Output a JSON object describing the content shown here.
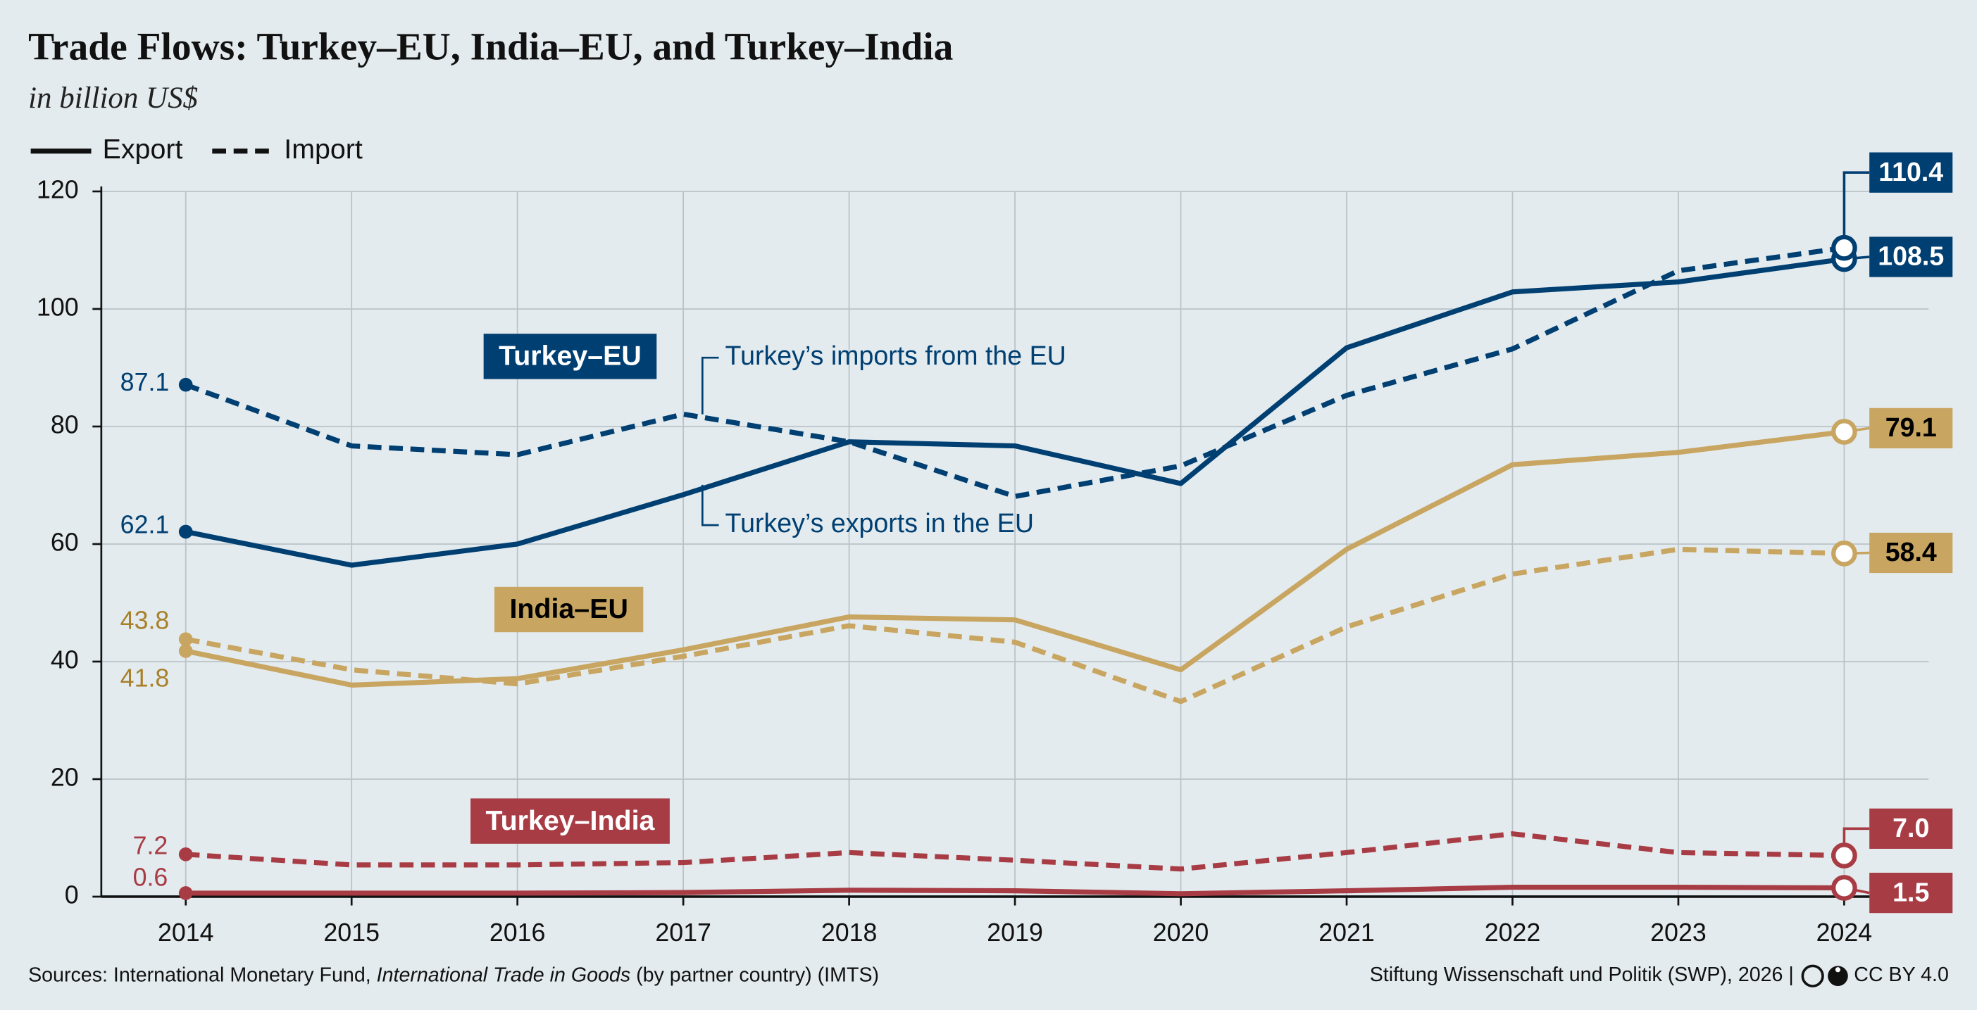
{
  "chart_data": {
    "type": "line",
    "title": "Trade Flows: Turkey–EU,  India–EU, and Turkey–India",
    "subtitle": "in billion US$",
    "legend": [
      {
        "name": "Export",
        "dash": "solid"
      },
      {
        "name": "Import",
        "dash": "dashed"
      }
    ],
    "categories": [
      "2014",
      "2015",
      "2016",
      "2017",
      "2018",
      "2019",
      "2020",
      "2021",
      "2022",
      "2023",
      "2024"
    ],
    "ylim": [
      0,
      120
    ],
    "yticks": [
      0,
      20,
      40,
      60,
      80,
      100,
      120
    ],
    "grid": true,
    "groups": [
      {
        "name": "Turkey–EU",
        "color": "#003f72",
        "label_text_color": "#ffffff",
        "series": [
          {
            "dash": "solid",
            "values": [
              62.1,
              56.4,
              60.0,
              68.4,
              77.4,
              76.7,
              70.3,
              93.4,
              102.9,
              104.6,
              108.5
            ]
          },
          {
            "dash": "dashed",
            "values": [
              87.1,
              76.7,
              75.2,
              82.1,
              77.4,
              68.1,
              73.3,
              85.3,
              93.2,
              106.5,
              110.4
            ]
          }
        ]
      },
      {
        "name": "India–EU",
        "color": "#c8a560",
        "label_text_color": "#000000",
        "start_label_color": "#a8802a",
        "series": [
          {
            "dash": "solid",
            "values": [
              41.8,
              36.0,
              37.1,
              42.0,
              47.6,
              47.1,
              38.6,
              59.1,
              73.5,
              75.6,
              79.1
            ]
          },
          {
            "dash": "dashed",
            "values": [
              43.8,
              38.6,
              36.2,
              40.9,
              46.1,
              43.3,
              33.2,
              45.9,
              54.9,
              59.1,
              58.4
            ]
          }
        ]
      },
      {
        "name": "Turkey–India",
        "color": "#a83c45",
        "label_text_color": "#ffffff",
        "series": [
          {
            "dash": "solid",
            "values": [
              0.6,
              0.6,
              0.6,
              0.7,
              1.1,
              1.0,
              0.5,
              1.0,
              1.6,
              1.6,
              1.5
            ]
          },
          {
            "dash": "dashed",
            "values": [
              7.2,
              5.4,
              5.4,
              5.8,
              7.5,
              6.2,
              4.7,
              7.5,
              10.7,
              7.5,
              7.0
            ],
            "value_labels": [
              null,
              null,
              null,
              null,
              null,
              null,
              null,
              null,
              null,
              null,
              "7.0"
            ]
          }
        ]
      }
    ],
    "annotations": [
      "Turkey’s imports from the EU",
      "Turkey’s exports in the EU"
    ],
    "source": [
      "Sources: International Monetary Fund, ",
      "International Trade in Goods",
      " (by partner country) (IMTS)"
    ],
    "credit": "Stiftung Wissenschaft und Politik (SWP), 2026 |",
    "license": "CC BY 4.0"
  }
}
